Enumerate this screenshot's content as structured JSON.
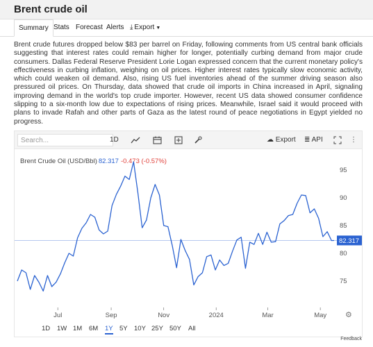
{
  "page": {
    "title": "Brent crude oil",
    "feedback_label": "Feedback"
  },
  "tabs": [
    {
      "label": "Summary",
      "active": true
    },
    {
      "label": "Stats"
    },
    {
      "label": "Forecast"
    },
    {
      "label": "Alerts"
    },
    {
      "label": "Export",
      "icon": "download-icon"
    }
  ],
  "article": "Brent crude futures dropped below $83 per barrel on Friday, following comments from US central bank officials suggesting that interest rates could remain higher for longer, potentially curbing demand from major crude consumers. Dallas Federal Reserve President Lorie Logan expressed concern that the current monetary policy's effectiveness in curbing inflation, weighing on oil prices. Higher interest rates typically slow economic activity, which could weaken oil demand. Also, rising US fuel inventories ahead of the summer driving season also pressured oil prices. On Thursday, data showed that crude oil imports in China increased in April, signaling improving demand in the world's top crude importer. However, recent US data showed consumer confidence slipping to a six-month low due to expectations of rising prices. Meanwhile, Israel said it would proceed with plans to invade Rafah and other parts of Gaza as the latest round of peace negotiations in Egypt yielded no progress.",
  "toolbar": {
    "search_placeholder": "Search...",
    "interval": "1D",
    "chart_type_icon": "line-chart-icon",
    "calendar_icon": "calendar-icon",
    "compare_icon": "plus-square-icon",
    "tools_icon": "wrench-icon",
    "export_label": "Export",
    "export_icon": "cloud-download-icon",
    "api_label": "API",
    "api_icon": "database-icon",
    "fullscreen_icon": "expand-icon",
    "more_icon": "vertical-ellipsis-icon"
  },
  "instrument": {
    "name": "Brent Crude Oil (USD/Bbl)",
    "price": "82.317",
    "change": "-0.473 (-0.57%)",
    "last_label": "82.317"
  },
  "settings_icon": "gear-icon",
  "ranges": [
    {
      "label": "1D"
    },
    {
      "label": "1W"
    },
    {
      "label": "1M"
    },
    {
      "label": "6M"
    },
    {
      "label": "1Y",
      "active": true
    },
    {
      "label": "5Y"
    },
    {
      "label": "10Y"
    },
    {
      "label": "25Y"
    },
    {
      "label": "50Y"
    },
    {
      "label": "All"
    }
  ],
  "colors": {
    "line": "#2a62d1",
    "negative": "#e0403a",
    "last_price_bg": "#2a62d1"
  },
  "chart_data": {
    "type": "line",
    "title": "Brent Crude Oil (USD/Bbl)",
    "x_ticks": [
      "Jul",
      "Sep",
      "Nov",
      "2024",
      "Mar",
      "May"
    ],
    "x_tick_dates": [
      "2023-07-01",
      "2023-09-01",
      "2023-11-01",
      "2024-01-01",
      "2024-03-01",
      "2024-05-01"
    ],
    "y_ticks": [
      75,
      80,
      85,
      90,
      95
    ],
    "ylim": [
      70.5,
      97
    ],
    "last_value": 82.317,
    "grid": false,
    "series": [
      {
        "name": "Brent Crude Oil (USD/Bbl)",
        "points": [
          [
            "2023-05-15",
            75.0
          ],
          [
            "2023-05-20",
            77.0
          ],
          [
            "2023-05-25",
            76.5
          ],
          [
            "2023-05-30",
            73.5
          ],
          [
            "2023-06-04",
            76.0
          ],
          [
            "2023-06-09",
            74.8
          ],
          [
            "2023-06-14",
            73.2
          ],
          [
            "2023-06-19",
            76.0
          ],
          [
            "2023-06-24",
            74.0
          ],
          [
            "2023-06-29",
            74.8
          ],
          [
            "2023-07-04",
            76.3
          ],
          [
            "2023-07-09",
            78.3
          ],
          [
            "2023-07-14",
            80.0
          ],
          [
            "2023-07-19",
            79.5
          ],
          [
            "2023-07-24",
            82.8
          ],
          [
            "2023-07-29",
            84.5
          ],
          [
            "2023-08-03",
            85.5
          ],
          [
            "2023-08-08",
            87.0
          ],
          [
            "2023-08-13",
            86.5
          ],
          [
            "2023-08-18",
            84.2
          ],
          [
            "2023-08-23",
            83.5
          ],
          [
            "2023-08-28",
            84.0
          ],
          [
            "2023-09-02",
            88.6
          ],
          [
            "2023-09-07",
            90.6
          ],
          [
            "2023-09-12",
            92.1
          ],
          [
            "2023-09-17",
            93.9
          ],
          [
            "2023-09-22",
            93.3
          ],
          [
            "2023-09-27",
            96.5
          ],
          [
            "2023-10-02",
            90.9
          ],
          [
            "2023-10-07",
            84.6
          ],
          [
            "2023-10-12",
            86.0
          ],
          [
            "2023-10-17",
            90.0
          ],
          [
            "2023-10-22",
            92.4
          ],
          [
            "2023-10-27",
            90.5
          ],
          [
            "2023-11-01",
            85.0
          ],
          [
            "2023-11-06",
            84.8
          ],
          [
            "2023-11-11",
            81.4
          ],
          [
            "2023-11-16",
            77.4
          ],
          [
            "2023-11-21",
            82.5
          ],
          [
            "2023-11-26",
            80.5
          ],
          [
            "2023-12-01",
            78.9
          ],
          [
            "2023-12-06",
            74.3
          ],
          [
            "2023-12-11",
            75.8
          ],
          [
            "2023-12-16",
            76.5
          ],
          [
            "2023-12-21",
            79.4
          ],
          [
            "2023-12-26",
            79.7
          ],
          [
            "2023-12-31",
            77.0
          ],
          [
            "2024-01-05",
            78.8
          ],
          [
            "2024-01-10",
            77.8
          ],
          [
            "2024-01-15",
            78.2
          ],
          [
            "2024-01-20",
            80.4
          ],
          [
            "2024-01-25",
            82.4
          ],
          [
            "2024-01-30",
            82.9
          ],
          [
            "2024-02-04",
            77.3
          ],
          [
            "2024-02-09",
            82.0
          ],
          [
            "2024-02-14",
            81.6
          ],
          [
            "2024-02-19",
            83.6
          ],
          [
            "2024-02-24",
            81.6
          ],
          [
            "2024-02-29",
            83.8
          ],
          [
            "2024-03-05",
            82.0
          ],
          [
            "2024-03-10",
            82.1
          ],
          [
            "2024-03-15",
            85.3
          ],
          [
            "2024-03-20",
            85.9
          ],
          [
            "2024-03-25",
            86.8
          ],
          [
            "2024-03-30",
            87.0
          ],
          [
            "2024-04-04",
            89.0
          ],
          [
            "2024-04-09",
            90.5
          ],
          [
            "2024-04-14",
            90.4
          ],
          [
            "2024-04-19",
            87.3
          ],
          [
            "2024-04-24",
            88.0
          ],
          [
            "2024-04-29",
            86.3
          ],
          [
            "2024-05-04",
            83.0
          ],
          [
            "2024-05-09",
            83.9
          ],
          [
            "2024-05-14",
            82.3
          ],
          [
            "2024-05-17",
            82.317
          ]
        ]
      }
    ]
  }
}
